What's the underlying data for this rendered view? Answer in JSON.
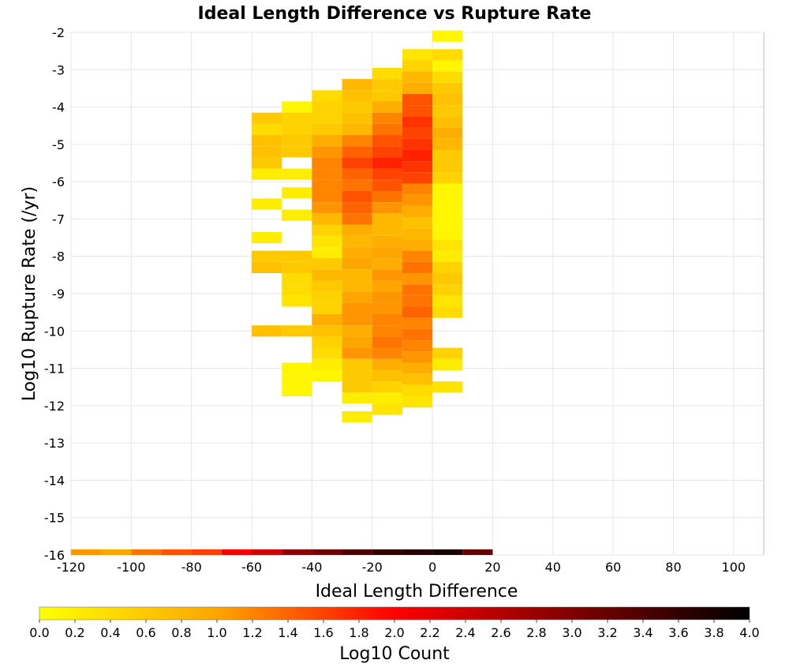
{
  "chart_data": {
    "type": "heatmap",
    "title": "Ideal Length Difference vs Rupture Rate",
    "xlabel": "Ideal Length Difference",
    "ylabel": "Log10 Rupture Rate (/yr)",
    "xlim": [
      -120,
      110
    ],
    "ylim": [
      -16,
      -2
    ],
    "x_ticks": [
      "-120",
      "-100",
      "-80",
      "-60",
      "-40",
      "-20",
      "0",
      "20",
      "40",
      "60",
      "80",
      "100"
    ],
    "y_ticks": [
      "-2",
      "-3",
      "-4",
      "-5",
      "-6",
      "-7",
      "-8",
      "-9",
      "-10",
      "-11",
      "-12",
      "-13",
      "-14",
      "-15",
      "-16"
    ],
    "grid": true,
    "x_bin_width": 10,
    "y_bin_height": 0.3,
    "colorbar": {
      "label": "Log10 Count",
      "range": [
        0.0,
        4.0
      ],
      "ticks": [
        "0.0",
        "0.2",
        "0.4",
        "0.6",
        "0.8",
        "1.0",
        "1.2",
        "1.4",
        "1.6",
        "1.8",
        "2.0",
        "2.2",
        "2.4",
        "2.6",
        "2.8",
        "3.0",
        "3.2",
        "3.4",
        "3.6",
        "3.8",
        "4.0"
      ],
      "colors": [
        "#ffff00",
        "#ffa500",
        "#ff0000",
        "#800000",
        "#000000"
      ]
    },
    "columns": [
      {
        "x": -60,
        "cells": [
          [
            -4.3,
            0.6
          ],
          [
            -4.6,
            0.4
          ],
          [
            -4.9,
            0.7
          ],
          [
            -5.2,
            0.7
          ],
          [
            -5.5,
            0.6
          ],
          [
            -5.8,
            0.2
          ],
          [
            -6.6,
            0.2
          ],
          [
            -7.5,
            0.2
          ],
          [
            -8.0,
            0.6
          ],
          [
            -8.3,
            0.7
          ],
          [
            -10.0,
            0.7
          ]
        ]
      },
      {
        "x": -50,
        "cells": [
          [
            -4.0,
            0.1
          ],
          [
            -4.3,
            0.5
          ],
          [
            -4.6,
            0.5
          ],
          [
            -4.9,
            0.6
          ],
          [
            -5.2,
            0.6
          ],
          [
            -5.8,
            0.2
          ],
          [
            -6.3,
            0.2
          ],
          [
            -6.9,
            0.2
          ],
          [
            -8.0,
            0.6
          ],
          [
            -8.3,
            0.6
          ],
          [
            -8.6,
            0.4
          ],
          [
            -8.9,
            0.4
          ],
          [
            -9.2,
            0.3
          ],
          [
            -10.0,
            0.6
          ],
          [
            -11.0,
            0.1
          ],
          [
            -11.3,
            0.1
          ],
          [
            -11.6,
            0.1
          ]
        ]
      },
      {
        "x": -40,
        "cells": [
          [
            -3.7,
            0.4
          ],
          [
            -4.0,
            0.5
          ],
          [
            -4.3,
            0.5
          ],
          [
            -4.6,
            0.6
          ],
          [
            -4.9,
            0.9
          ],
          [
            -5.2,
            1.1
          ],
          [
            -5.5,
            1.2
          ],
          [
            -5.8,
            1.2
          ],
          [
            -6.1,
            1.2
          ],
          [
            -6.4,
            1.2
          ],
          [
            -6.7,
            1.1
          ],
          [
            -7.0,
            0.8
          ],
          [
            -7.3,
            0.5
          ],
          [
            -7.6,
            0.3
          ],
          [
            -7.9,
            0.2
          ],
          [
            -8.2,
            0.6
          ],
          [
            -8.5,
            0.8
          ],
          [
            -8.8,
            0.6
          ],
          [
            -9.1,
            0.5
          ],
          [
            -9.4,
            0.5
          ],
          [
            -9.7,
            0.9
          ],
          [
            -10.0,
            0.7
          ],
          [
            -10.3,
            0.5
          ],
          [
            -10.6,
            0.4
          ],
          [
            -10.9,
            0.2
          ],
          [
            -11.2,
            0.1
          ]
        ]
      },
      {
        "x": -30,
        "cells": [
          [
            -3.4,
            0.8
          ],
          [
            -3.7,
            0.7
          ],
          [
            -4.0,
            0.6
          ],
          [
            -4.3,
            0.7
          ],
          [
            -4.6,
            0.8
          ],
          [
            -4.9,
            1.2
          ],
          [
            -5.2,
            1.4
          ],
          [
            -5.5,
            1.6
          ],
          [
            -5.8,
            1.4
          ],
          [
            -6.1,
            1.3
          ],
          [
            -6.4,
            1.5
          ],
          [
            -6.7,
            1.4
          ],
          [
            -7.0,
            1.3
          ],
          [
            -7.3,
            0.9
          ],
          [
            -7.6,
            0.8
          ],
          [
            -7.9,
            0.9
          ],
          [
            -8.2,
            1.0
          ],
          [
            -8.5,
            0.8
          ],
          [
            -8.8,
            0.8
          ],
          [
            -9.1,
            1.0
          ],
          [
            -9.4,
            1.1
          ],
          [
            -9.7,
            1.1
          ],
          [
            -10.0,
            0.9
          ],
          [
            -10.3,
            1.0
          ],
          [
            -10.6,
            1.1
          ],
          [
            -10.9,
            0.6
          ],
          [
            -11.2,
            0.6
          ],
          [
            -11.5,
            0.6
          ],
          [
            -11.8,
            0.2
          ],
          [
            -12.3,
            0.2
          ]
        ]
      },
      {
        "x": -20,
        "cells": [
          [
            -3.1,
            0.4
          ],
          [
            -3.4,
            0.6
          ],
          [
            -3.7,
            0.6
          ],
          [
            -4.0,
            0.9
          ],
          [
            -4.3,
            1.2
          ],
          [
            -4.6,
            1.3
          ],
          [
            -4.9,
            1.5
          ],
          [
            -5.2,
            1.6
          ],
          [
            -5.5,
            1.8
          ],
          [
            -5.8,
            1.6
          ],
          [
            -6.1,
            1.5
          ],
          [
            -6.4,
            1.3
          ],
          [
            -6.7,
            1.1
          ],
          [
            -7.0,
            0.8
          ],
          [
            -7.3,
            0.8
          ],
          [
            -7.6,
            0.9
          ],
          [
            -7.9,
            1.0
          ],
          [
            -8.2,
            0.9
          ],
          [
            -8.5,
            1.1
          ],
          [
            -8.8,
            1.0
          ],
          [
            -9.1,
            1.1
          ],
          [
            -9.4,
            1.1
          ],
          [
            -9.7,
            1.2
          ],
          [
            -10.0,
            1.2
          ],
          [
            -10.3,
            1.3
          ],
          [
            -10.6,
            1.2
          ],
          [
            -10.9,
            0.9
          ],
          [
            -11.2,
            0.7
          ],
          [
            -11.5,
            0.5
          ],
          [
            -11.8,
            0.2
          ],
          [
            -12.1,
            0.3
          ]
        ]
      },
      {
        "x": -10,
        "cells": [
          [
            -2.6,
            0.3
          ],
          [
            -2.9,
            0.5
          ],
          [
            -3.2,
            0.8
          ],
          [
            -3.5,
            0.9
          ],
          [
            -3.8,
            1.5
          ],
          [
            -4.1,
            1.5
          ],
          [
            -4.4,
            1.7
          ],
          [
            -4.7,
            1.6
          ],
          [
            -5.0,
            1.7
          ],
          [
            -5.3,
            1.8
          ],
          [
            -5.6,
            1.7
          ],
          [
            -5.9,
            1.6
          ],
          [
            -6.2,
            1.2
          ],
          [
            -6.5,
            1.1
          ],
          [
            -6.8,
            0.9
          ],
          [
            -7.1,
            0.7
          ],
          [
            -7.4,
            0.8
          ],
          [
            -7.7,
            0.9
          ],
          [
            -8.0,
            1.2
          ],
          [
            -8.3,
            1.3
          ],
          [
            -8.6,
            1.1
          ],
          [
            -8.9,
            1.3
          ],
          [
            -9.2,
            1.3
          ],
          [
            -9.5,
            1.4
          ],
          [
            -9.8,
            1.2
          ],
          [
            -10.1,
            1.3
          ],
          [
            -10.4,
            1.2
          ],
          [
            -10.7,
            1.1
          ],
          [
            -11.0,
            0.9
          ],
          [
            -11.3,
            0.7
          ],
          [
            -11.6,
            0.4
          ],
          [
            -11.9,
            0.3
          ]
        ]
      },
      {
        "x": 0,
        "cells": [
          [
            -2.1,
            0.1
          ],
          [
            -2.6,
            0.4
          ],
          [
            -2.9,
            0.1
          ],
          [
            -3.2,
            0.4
          ],
          [
            -3.5,
            0.6
          ],
          [
            -3.8,
            0.7
          ],
          [
            -4.1,
            0.6
          ],
          [
            -4.4,
            0.7
          ],
          [
            -4.7,
            0.9
          ],
          [
            -5.0,
            0.8
          ],
          [
            -5.3,
            0.6
          ],
          [
            -5.6,
            0.6
          ],
          [
            -5.9,
            0.5
          ],
          [
            -6.2,
            0.1
          ],
          [
            -6.5,
            0.1
          ],
          [
            -6.8,
            0.1
          ],
          [
            -7.1,
            0.1
          ],
          [
            -7.4,
            0.1
          ],
          [
            -7.7,
            0.3
          ],
          [
            -8.0,
            0.2
          ],
          [
            -8.3,
            0.5
          ],
          [
            -8.6,
            0.6
          ],
          [
            -8.9,
            0.5
          ],
          [
            -9.2,
            0.3
          ],
          [
            -9.5,
            0.4
          ],
          [
            -10.6,
            0.5
          ],
          [
            -10.9,
            0.2
          ],
          [
            -11.5,
            0.3
          ]
        ]
      }
    ],
    "bottom_row": {
      "y": -16.0,
      "values": [
        1.1,
        1.0,
        1.3,
        1.5,
        1.6,
        2.1,
        2.4,
        2.9,
        3.1,
        3.4,
        3.6,
        3.7,
        3.8,
        3.2
      ]
    }
  }
}
